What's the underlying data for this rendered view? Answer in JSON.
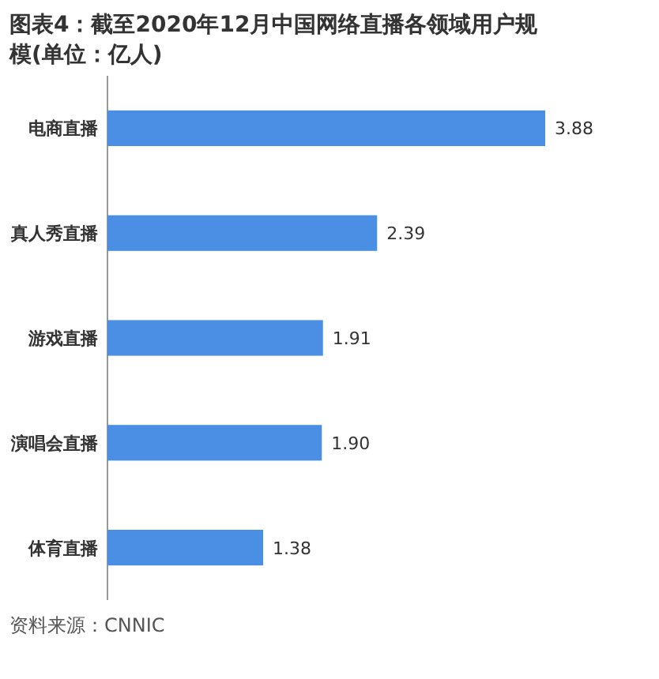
{
  "chart_data": {
    "type": "bar",
    "orientation": "horizontal",
    "title": "图表4：截至2020年12月中国网络直播各领域用户规模(单位：亿人)",
    "categories": [
      "电商直播",
      "真人秀直播",
      "游戏直播",
      "演唱会直播",
      "体育直播"
    ],
    "values": [
      3.88,
      2.39,
      1.91,
      1.9,
      1.38
    ],
    "value_labels": [
      "3.88",
      "2.39",
      "1.91",
      "1.90",
      "1.38"
    ],
    "color": "#4a8fe3",
    "annotations": [
      "资料来源：CNNIC"
    ]
  }
}
